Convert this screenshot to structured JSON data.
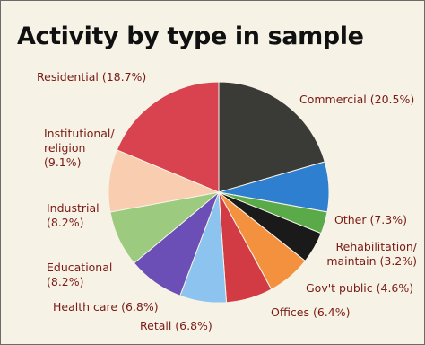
{
  "title": "Activity by type in sample",
  "chart_data": {
    "type": "pie",
    "title": "Activity by type in sample",
    "unit": "%",
    "slices": [
      {
        "label": "Commercial (20.5%)",
        "value": 20.5,
        "color": "#3a3a36"
      },
      {
        "label": "Other (7.3%)",
        "value": 7.3,
        "color": "#2f7fd0"
      },
      {
        "label": "Rehabilitation/ maintain (3.2%)",
        "value": 3.2,
        "color": "#5aaa4a"
      },
      {
        "label": "Gov't public (4.6%)",
        "value": 4.6,
        "color": "#1a1a1a"
      },
      {
        "label": "Offices (6.4%)",
        "value": 6.4,
        "color": "#f4913e"
      },
      {
        "label": "Retail (6.8%)",
        "value": 6.8,
        "color": "#d23a44"
      },
      {
        "label": "Health care (6.8%)",
        "value": 6.8,
        "color": "#8cc3ef"
      },
      {
        "label": "Educational (8.2%)",
        "value": 8.2,
        "color": "#6b4fb6"
      },
      {
        "label": "Industrial (8.2%)",
        "value": 8.2,
        "color": "#9ccb80"
      },
      {
        "label": "Institutional/ religion (9.1%)",
        "value": 9.1,
        "color": "#f8cdb0"
      },
      {
        "label": "Residential (18.7%)",
        "value": 18.7,
        "color": "#d8434f"
      }
    ]
  }
}
